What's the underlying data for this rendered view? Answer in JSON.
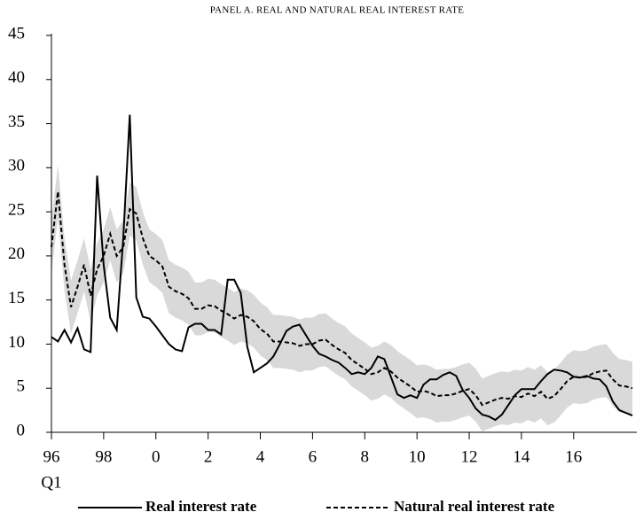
{
  "chart_data": {
    "type": "line",
    "title": "PANEL A. REAL AND NATURAL REAL INTEREST RATE",
    "x_sublabel": "Q1",
    "categories": [
      "96",
      null,
      null,
      null,
      null,
      null,
      null,
      null,
      "98",
      null,
      null,
      null,
      null,
      null,
      null,
      null,
      "0",
      null,
      null,
      null,
      null,
      null,
      null,
      null,
      "2",
      null,
      null,
      null,
      null,
      null,
      null,
      null,
      "4",
      null,
      null,
      null,
      null,
      null,
      null,
      null,
      "6",
      null,
      null,
      null,
      null,
      null,
      null,
      null,
      "8",
      null,
      null,
      null,
      null,
      null,
      null,
      null,
      "10",
      null,
      null,
      null,
      null,
      null,
      null,
      null,
      "12",
      null,
      null,
      null,
      null,
      null,
      null,
      null,
      "14",
      null,
      null,
      null,
      null,
      null,
      null,
      null,
      "16",
      null,
      null,
      null,
      null,
      null,
      null,
      null,
      null,
      null
    ],
    "ylim": [
      0,
      45
    ],
    "yticks": [
      0,
      5,
      10,
      15,
      20,
      25,
      30,
      35,
      40,
      45
    ],
    "series": [
      {
        "name": "Real interest rate",
        "color": "#000000",
        "line_style": "solid",
        "values": [
          10.8,
          10.3,
          11.6,
          10.2,
          11.8,
          9.4,
          9.1,
          29.1,
          19,
          13,
          11.6,
          22,
          36,
          15.3,
          13.1,
          12.9,
          12,
          11,
          10,
          9.4,
          9.2,
          11.9,
          12.3,
          12.3,
          11.6,
          11.6,
          11.1,
          17.3,
          17.3,
          15.8,
          9.7,
          6.8,
          7.3,
          7.8,
          8.6,
          10,
          11.5,
          12,
          12.2,
          11,
          9.8,
          8.9,
          8.6,
          8.2,
          7.9,
          7.3,
          6.6,
          6.8,
          6.6,
          7.3,
          8.6,
          8.3,
          6.3,
          4.3,
          3.9,
          4.2,
          3.9,
          5.4,
          6,
          6,
          6.5,
          6.8,
          6.4,
          4.8,
          3.9,
          2.7,
          2,
          1.8,
          1.4,
          2,
          3.1,
          4.2,
          4.9,
          4.9,
          4.9,
          5.8,
          6.6,
          7.1,
          7,
          6.8,
          6.3,
          6.2,
          6.4,
          6.1,
          6,
          5.2,
          3.5,
          2.5,
          2.2,
          1.9
        ]
      },
      {
        "name": "Natural real interest rate",
        "color": "#000000",
        "line_style": "dashed",
        "values": [
          21,
          27.3,
          19,
          14.2,
          16.5,
          19,
          15.5,
          18.5,
          20,
          22.5,
          20,
          21,
          25.3,
          24.8,
          22,
          20,
          19.5,
          18.8,
          16.5,
          16,
          15.7,
          15.2,
          14,
          14,
          14.4,
          14.3,
          13.8,
          13.4,
          12.9,
          13.3,
          13.1,
          12.6,
          11.7,
          11.2,
          10.3,
          10.3,
          10.2,
          10.1,
          9.8,
          10,
          10,
          10.4,
          10.5,
          9.9,
          9.4,
          9,
          8.2,
          7.7,
          7.2,
          6.6,
          6.8,
          7.3,
          6.9,
          6.2,
          5.7,
          5.2,
          4.6,
          4.7,
          4.5,
          4.1,
          4.2,
          4.2,
          4.4,
          4.7,
          4.9,
          4.2,
          3.1,
          3.4,
          3.7,
          3.9,
          3.8,
          4.1,
          4,
          4.4,
          4.1,
          4.6,
          3.8,
          4.1,
          4.9,
          5.8,
          6.3,
          6.2,
          6.3,
          6.7,
          6.9,
          7,
          6,
          5.3,
          5.2,
          5
        ]
      }
    ],
    "band": {
      "color": "#d9d9d9",
      "upper": [
        24,
        30.3,
        22,
        17.2,
        19.5,
        22,
        18.5,
        21.5,
        23,
        25.5,
        23,
        24,
        28.3,
        27.8,
        25,
        23,
        22.5,
        21.8,
        19.5,
        19,
        18.7,
        18.2,
        17,
        17,
        17.4,
        17.3,
        16.8,
        16.4,
        15.9,
        16.3,
        16.1,
        15.6,
        14.7,
        14.2,
        13.3,
        13.3,
        13.2,
        13.1,
        12.8,
        13,
        13,
        13.4,
        13.5,
        12.9,
        12.4,
        12,
        11.2,
        10.7,
        10.2,
        9.6,
        9.8,
        10.3,
        9.9,
        9.2,
        8.7,
        8.2,
        7.6,
        7.7,
        7.5,
        7.1,
        7.2,
        7.2,
        7.4,
        7.7,
        7.9,
        7.2,
        6.1,
        6.4,
        6.7,
        6.9,
        6.8,
        7.1,
        7,
        7.4,
        7.1,
        7.6,
        6.8,
        7.1,
        7.9,
        8.8,
        9.3,
        9.2,
        9.3,
        9.7,
        9.9,
        10,
        9,
        8.3,
        8.2,
        8
      ],
      "lower": [
        18,
        24.3,
        16,
        11.2,
        13.5,
        16,
        12.5,
        15.5,
        17,
        19.5,
        17,
        18,
        22.3,
        21.8,
        19,
        17,
        16.5,
        15.8,
        13.5,
        13,
        12.7,
        12.2,
        11,
        11,
        11.4,
        11.3,
        10.8,
        10.4,
        9.9,
        10.3,
        10.1,
        9.6,
        8.7,
        8.2,
        7.3,
        7.3,
        7.2,
        7.1,
        6.8,
        7,
        7,
        7.4,
        7.5,
        6.9,
        6.4,
        6,
        5.2,
        4.7,
        4.2,
        3.6,
        3.8,
        4.3,
        3.9,
        3.2,
        2.7,
        2.2,
        1.6,
        1.7,
        1.5,
        1.1,
        1.2,
        1.2,
        1.4,
        1.7,
        1.9,
        1.2,
        0.1,
        0.4,
        0.7,
        0.9,
        0.8,
        1.1,
        1,
        1.4,
        1.1,
        1.6,
        0.8,
        1.1,
        1.9,
        2.8,
        3.3,
        3.2,
        3.3,
        3.7,
        3.9,
        4,
        3,
        2.3,
        2.2,
        2
      ]
    }
  }
}
